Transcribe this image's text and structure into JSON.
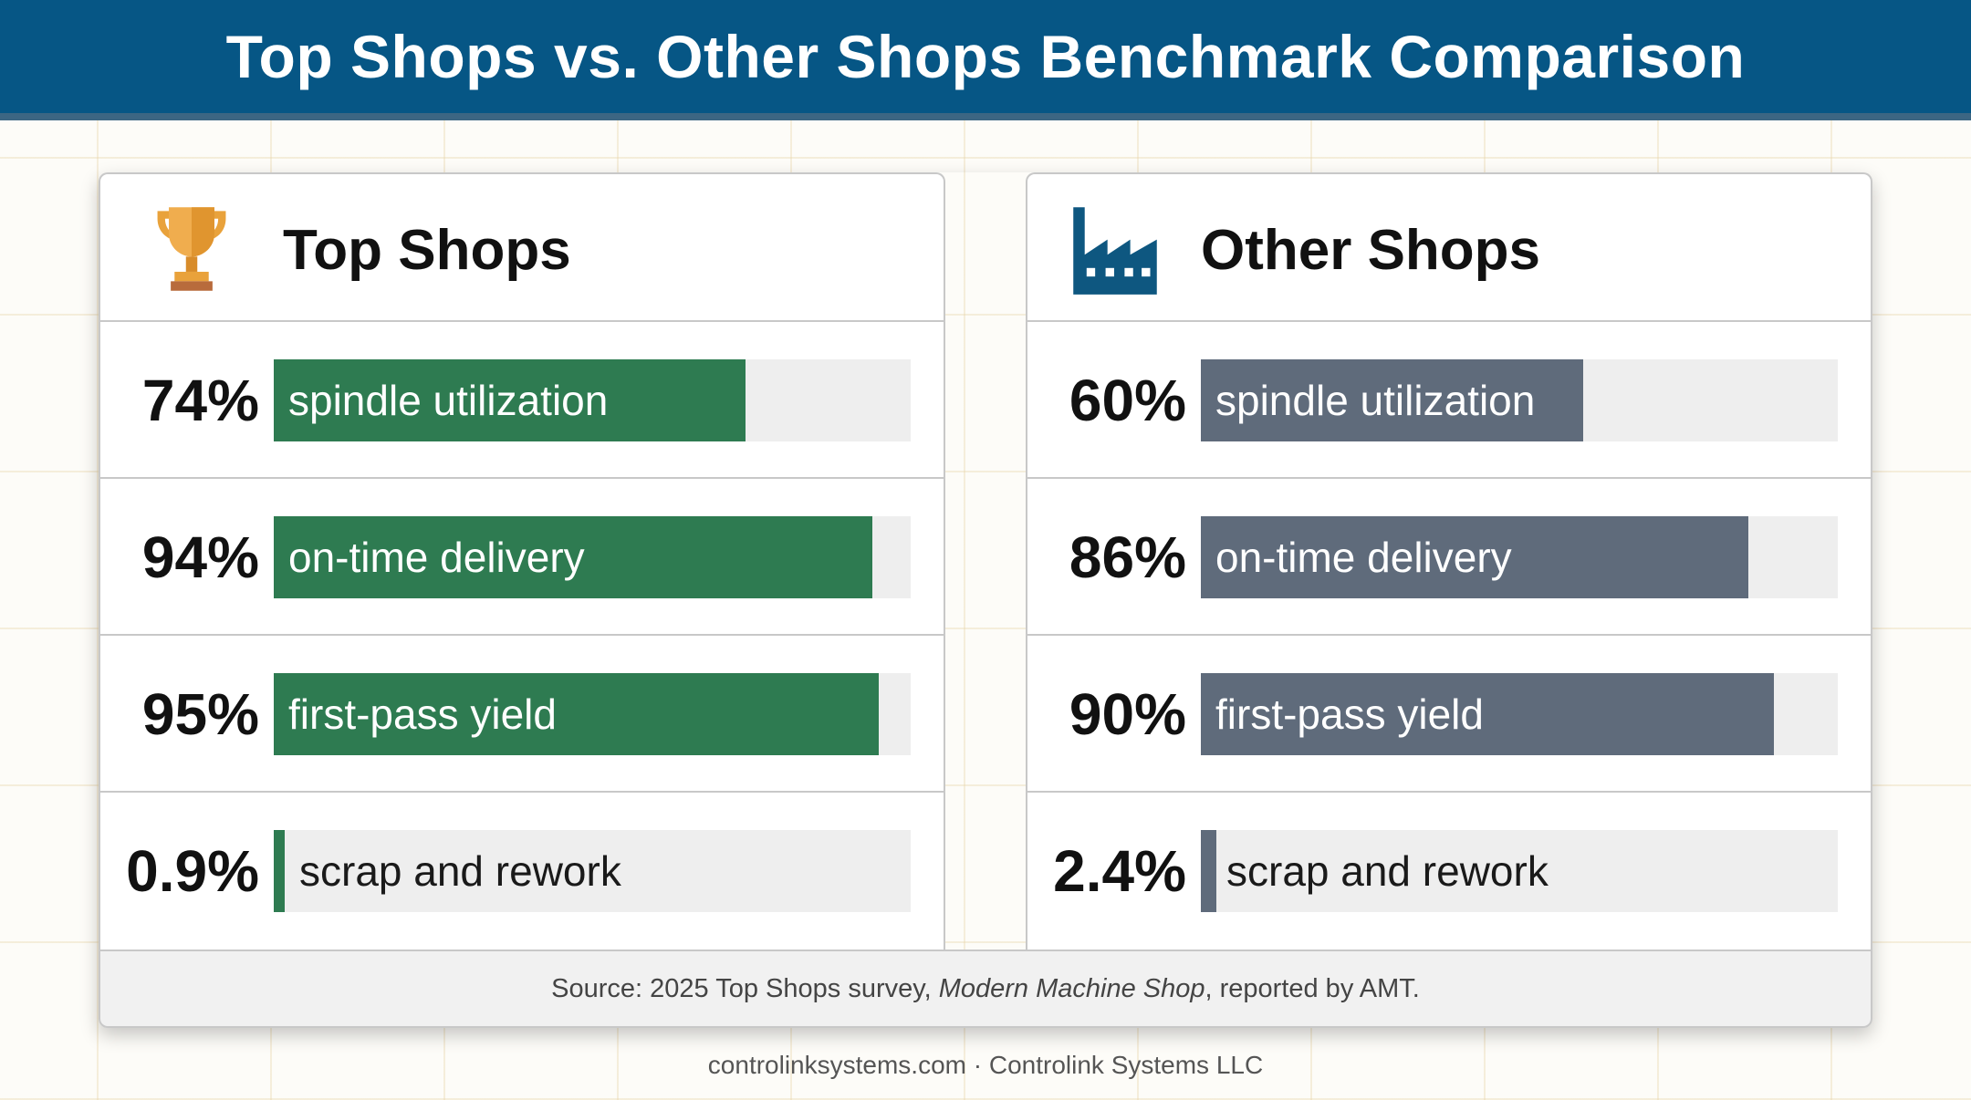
{
  "title": "Top Shops vs. Other Shops Benchmark Comparison",
  "colors": {
    "header_bg": "#065685",
    "top_shops_bar": "#2e7b51",
    "other_shops_bar": "#5f6b7b",
    "track": "#eeeeee",
    "trophy_icon": "#e9a23b",
    "factory_icon": "#0e5780"
  },
  "chart_data": [
    {
      "type": "bar",
      "title": "Top Shops",
      "icon": "trophy-icon",
      "categories": [
        "spindle utilization",
        "on-time delivery",
        "first-pass yield",
        "scrap and rework"
      ],
      "value_labels": [
        "74%",
        "94%",
        "95%",
        "0.9%"
      ],
      "values": [
        74,
        94,
        95,
        0.9
      ],
      "ylim": [
        0,
        100
      ],
      "orientation": "horizontal"
    },
    {
      "type": "bar",
      "title": "Other Shops",
      "icon": "factory-icon",
      "categories": [
        "spindle utilization",
        "on-time delivery",
        "first-pass yield",
        "scrap and rework"
      ],
      "value_labels": [
        "60%",
        "86%",
        "90%",
        "2.4%"
      ],
      "values": [
        60,
        86,
        90,
        2.4
      ],
      "ylim": [
        0,
        100
      ],
      "orientation": "horizontal"
    }
  ],
  "source": {
    "prefix": "Source: 2025 Top Shops survey, ",
    "publication": "Modern Machine Shop",
    "suffix": ", reported by AMT."
  },
  "credit": "controlinksystems.com · Controlink Systems LLC"
}
